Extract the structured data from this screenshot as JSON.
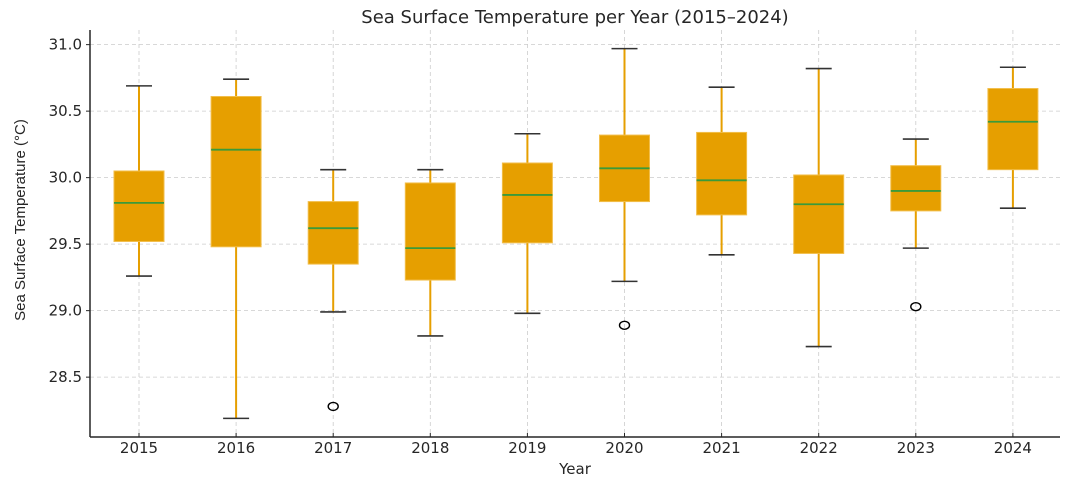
{
  "chart_data": {
    "type": "box",
    "title": "Sea Surface Temperature per Year (2015–2024)",
    "xlabel": "Year",
    "ylabel": "Sea Surface Temperature (°C)",
    "ylim": [
      28.05,
      31.11
    ],
    "yticks": [
      28.5,
      29.0,
      29.5,
      30.0,
      30.5,
      31.0
    ],
    "ytick_labels": [
      "28.5",
      "29.0",
      "29.5",
      "30.0",
      "30.5",
      "31.0"
    ],
    "grid": true,
    "categories": [
      "2015",
      "2016",
      "2017",
      "2018",
      "2019",
      "2020",
      "2021",
      "2022",
      "2023",
      "2024"
    ],
    "boxes": [
      {
        "label": "2015",
        "whisker_low": 29.26,
        "q1": 29.52,
        "median": 29.81,
        "q3": 30.05,
        "whisker_high": 30.69,
        "outliers": []
      },
      {
        "label": "2016",
        "whisker_low": 28.19,
        "q1": 29.48,
        "median": 30.21,
        "q3": 30.61,
        "whisker_high": 30.74,
        "outliers": []
      },
      {
        "label": "2017",
        "whisker_low": 28.99,
        "q1": 29.35,
        "median": 29.62,
        "q3": 29.82,
        "whisker_high": 30.06,
        "outliers": [
          28.28
        ]
      },
      {
        "label": "2018",
        "whisker_low": 28.81,
        "q1": 29.23,
        "median": 29.47,
        "q3": 29.96,
        "whisker_high": 30.06,
        "outliers": []
      },
      {
        "label": "2019",
        "whisker_low": 28.98,
        "q1": 29.51,
        "median": 29.87,
        "q3": 30.11,
        "whisker_high": 30.33,
        "outliers": []
      },
      {
        "label": "2020",
        "whisker_low": 29.22,
        "q1": 29.82,
        "median": 30.07,
        "q3": 30.32,
        "whisker_high": 30.97,
        "outliers": [
          28.89
        ]
      },
      {
        "label": "2021",
        "whisker_low": 29.42,
        "q1": 29.72,
        "median": 29.98,
        "q3": 30.34,
        "whisker_high": 30.68,
        "outliers": []
      },
      {
        "label": "2022",
        "whisker_low": 28.73,
        "q1": 29.43,
        "median": 29.8,
        "q3": 30.02,
        "whisker_high": 30.82,
        "outliers": []
      },
      {
        "label": "2023",
        "whisker_low": 29.47,
        "q1": 29.75,
        "median": 29.9,
        "q3": 30.09,
        "whisker_high": 30.29,
        "outliers": [
          29.03
        ]
      },
      {
        "label": "2024",
        "whisker_low": 29.77,
        "q1": 30.06,
        "median": 30.42,
        "q3": 30.67,
        "whisker_high": 30.83,
        "outliers": []
      }
    ],
    "colors": {
      "box_fill": "#E69F00",
      "box_edge": "#F2BE4A",
      "whisker": "#E69F00",
      "cap": "#333333",
      "median": "#3A9A3A",
      "outlier": "#000000",
      "grid": "#CCCCCC",
      "spine": "#262626"
    }
  }
}
